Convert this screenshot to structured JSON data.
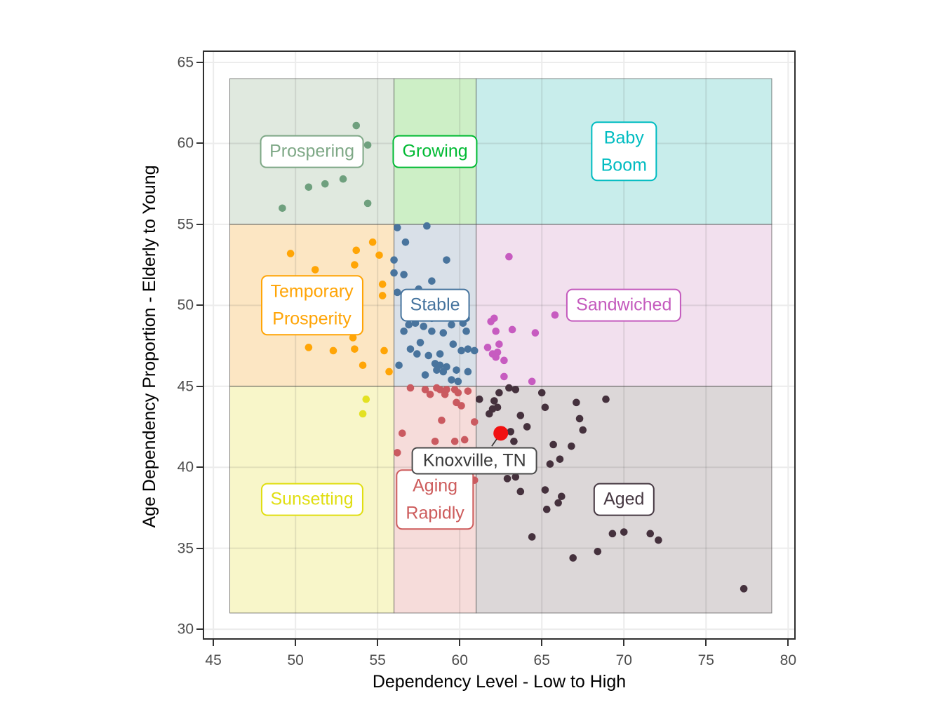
{
  "chart_data": {
    "type": "scatter",
    "title": "",
    "xlabel": "Dependency Level - Low to High",
    "ylabel": "Age Dependency Proportion - Elderly to Young",
    "x_domain": [
      44.44,
      80.37
    ],
    "y_domain": [
      29.44,
      65.65
    ],
    "x_ticks": [
      45,
      50,
      55,
      60,
      65,
      70,
      75,
      80
    ],
    "y_ticks": [
      30,
      35,
      40,
      45,
      50,
      55,
      60,
      65
    ],
    "grid": {
      "on": true,
      "major_color": "#ececec",
      "overlay_color": "rgba(80,80,80,0.13)"
    },
    "panel_border_color": "#2f2f2f",
    "region_border_color": "rgba(70,70,70,0.65)",
    "legend": "none",
    "regions": [
      {
        "id": "prospering",
        "label_lines": [
          "Prospering"
        ],
        "x": [
          46,
          56
        ],
        "y": [
          55,
          64
        ],
        "fill": "#e0e9df",
        "color": "#7ea886",
        "label_at": [
          51.0,
          59.5
        ]
      },
      {
        "id": "growing",
        "label_lines": [
          "Growing"
        ],
        "x": [
          56,
          61
        ],
        "y": [
          55,
          64
        ],
        "fill": "#cdefc6",
        "color": "#00ba33",
        "label_at": [
          58.5,
          59.5
        ]
      },
      {
        "id": "baby-boom",
        "label_lines": [
          "Baby",
          "Boom"
        ],
        "x": [
          61,
          79
        ],
        "y": [
          55,
          64
        ],
        "fill": "#c8edeb",
        "color": "#00bcc1",
        "label_at": [
          70.0,
          59.5
        ]
      },
      {
        "id": "temporary-prosperity",
        "label_lines": [
          "Temporary",
          "Prosperity"
        ],
        "x": [
          46,
          56
        ],
        "y": [
          45,
          55
        ],
        "fill": "#fce6c3",
        "color": "#ffa405",
        "label_at": [
          51.0,
          50.0
        ]
      },
      {
        "id": "stable",
        "label_lines": [
          "Stable"
        ],
        "x": [
          56,
          61
        ],
        "y": [
          45,
          55
        ],
        "fill": "#d9e0e8",
        "color": "#46749e",
        "label_at": [
          58.5,
          50.0
        ]
      },
      {
        "id": "sandwiched",
        "label_lines": [
          "Sandwiched"
        ],
        "x": [
          61,
          79
        ],
        "y": [
          45,
          55
        ],
        "fill": "#f2e0ee",
        "color": "#c45abd",
        "label_at": [
          70.0,
          50.0
        ]
      },
      {
        "id": "sunsetting",
        "label_lines": [
          "Sunsetting"
        ],
        "x": [
          46,
          56
        ],
        "y": [
          31,
          45
        ],
        "fill": "#f8f6c9",
        "color": "#e0de10",
        "label_at": [
          51.0,
          38.0
        ]
      },
      {
        "id": "aging-rapidly",
        "label_lines": [
          "Aging",
          "Rapidly"
        ],
        "x": [
          56,
          61
        ],
        "y": [
          31,
          45
        ],
        "fill": "#f6dcda",
        "color": "#cd5c5c",
        "label_at": [
          58.5,
          38.0
        ]
      },
      {
        "id": "aged",
        "label_lines": [
          "Aged"
        ],
        "x": [
          61,
          79
        ],
        "y": [
          31,
          45
        ],
        "fill": "#dcd7d8",
        "color": "#463842",
        "label_at": [
          70.0,
          38.0
        ]
      }
    ],
    "series": [
      {
        "name": "Prospering",
        "color": "#6fa07e",
        "points": [
          [
            53.7,
            61.1
          ],
          [
            54.4,
            59.9
          ],
          [
            50.8,
            57.3
          ],
          [
            51.8,
            57.5
          ],
          [
            52.9,
            57.8
          ],
          [
            49.2,
            56.0
          ],
          [
            54.4,
            56.3
          ]
        ]
      },
      {
        "name": "Temporary Prosperity",
        "color": "#ffa506",
        "points": [
          [
            49.7,
            53.2
          ],
          [
            51.2,
            52.2
          ],
          [
            53.6,
            52.5
          ],
          [
            53.7,
            53.4
          ],
          [
            54.7,
            53.9
          ],
          [
            55.1,
            53.1
          ],
          [
            55.3,
            51.3
          ],
          [
            55.3,
            50.6
          ],
          [
            53.5,
            48.0
          ],
          [
            50.8,
            47.4
          ],
          [
            52.3,
            47.2
          ],
          [
            53.6,
            47.3
          ],
          [
            55.4,
            47.2
          ],
          [
            54.1,
            46.3
          ],
          [
            55.7,
            45.9
          ]
        ]
      },
      {
        "name": "Stable",
        "color": "#49749d",
        "points": [
          [
            56.2,
            54.8
          ],
          [
            58.0,
            54.9
          ],
          [
            56.7,
            53.9
          ],
          [
            59.2,
            52.8
          ],
          [
            56.0,
            52.8
          ],
          [
            56.0,
            52.0
          ],
          [
            56.6,
            51.9
          ],
          [
            58.3,
            51.5
          ],
          [
            57.5,
            51.0
          ],
          [
            56.2,
            50.8
          ],
          [
            58.3,
            49.2
          ],
          [
            56.9,
            48.8
          ],
          [
            57.3,
            48.9
          ],
          [
            57.8,
            48.7
          ],
          [
            58.3,
            48.4
          ],
          [
            59.0,
            48.3
          ],
          [
            59.5,
            48.8
          ],
          [
            60.2,
            48.9
          ],
          [
            60.4,
            49.2
          ],
          [
            60.4,
            48.4
          ],
          [
            56.6,
            48.4
          ],
          [
            57.6,
            47.7
          ],
          [
            59.6,
            47.6
          ],
          [
            57.0,
            47.3
          ],
          [
            57.4,
            47.0
          ],
          [
            58.1,
            46.9
          ],
          [
            58.8,
            47.0
          ],
          [
            60.1,
            47.2
          ],
          [
            60.5,
            47.3
          ],
          [
            60.9,
            47.2
          ],
          [
            56.3,
            46.3
          ],
          [
            58.5,
            46.4
          ],
          [
            58.8,
            46.3
          ],
          [
            59.2,
            46.2
          ],
          [
            58.6,
            46.0
          ],
          [
            59.0,
            45.9
          ],
          [
            57.9,
            45.7
          ],
          [
            59.8,
            46.0
          ],
          [
            60.5,
            45.9
          ],
          [
            59.5,
            45.4
          ],
          [
            59.9,
            45.3
          ]
        ]
      },
      {
        "name": "Sandwiched",
        "color": "#c75bc0",
        "points": [
          [
            63.0,
            53.0
          ],
          [
            65.8,
            49.4
          ],
          [
            62.1,
            49.2
          ],
          [
            61.9,
            49.0
          ],
          [
            62.2,
            48.4
          ],
          [
            63.2,
            48.5
          ],
          [
            64.6,
            48.3
          ],
          [
            61.7,
            47.4
          ],
          [
            62.4,
            47.6
          ],
          [
            62.0,
            47.0
          ],
          [
            62.3,
            47.1
          ],
          [
            62.2,
            46.8
          ],
          [
            62.7,
            46.6
          ],
          [
            62.7,
            45.6
          ],
          [
            64.4,
            45.3
          ]
        ]
      },
      {
        "name": "Sunsetting",
        "color": "#e3e122",
        "points": [
          [
            54.3,
            44.2
          ],
          [
            54.1,
            43.3
          ]
        ]
      },
      {
        "name": "Aging Rapidly",
        "color": "#ca5a60",
        "points": [
          [
            57.0,
            44.9
          ],
          [
            57.9,
            44.8
          ],
          [
            58.2,
            44.5
          ],
          [
            58.6,
            44.9
          ],
          [
            58.8,
            44.8
          ],
          [
            59.1,
            44.5
          ],
          [
            59.2,
            44.8
          ],
          [
            59.7,
            44.8
          ],
          [
            59.9,
            44.6
          ],
          [
            60.5,
            44.7
          ],
          [
            59.8,
            44.0
          ],
          [
            60.1,
            43.8
          ],
          [
            58.9,
            42.9
          ],
          [
            60.9,
            42.8
          ],
          [
            56.5,
            42.1
          ],
          [
            58.5,
            41.6
          ],
          [
            59.7,
            41.6
          ],
          [
            60.3,
            41.7
          ],
          [
            56.2,
            40.9
          ],
          [
            60.9,
            39.2
          ]
        ]
      },
      {
        "name": "Aged",
        "color": "#45313d",
        "points": [
          [
            61.2,
            44.2
          ],
          [
            62.1,
            44.1
          ],
          [
            62.4,
            44.6
          ],
          [
            63.0,
            44.9
          ],
          [
            63.4,
            44.8
          ],
          [
            62.0,
            43.6
          ],
          [
            62.3,
            43.7
          ],
          [
            61.8,
            43.3
          ],
          [
            63.1,
            42.2
          ],
          [
            63.7,
            43.2
          ],
          [
            64.1,
            42.5
          ],
          [
            65.0,
            44.6
          ],
          [
            65.2,
            43.7
          ],
          [
            67.1,
            44.0
          ],
          [
            67.3,
            43.0
          ],
          [
            67.5,
            42.3
          ],
          [
            68.9,
            44.2
          ],
          [
            63.3,
            41.6
          ],
          [
            65.7,
            41.4
          ],
          [
            66.8,
            41.3
          ],
          [
            65.5,
            40.2
          ],
          [
            66.1,
            40.5
          ],
          [
            62.9,
            39.3
          ],
          [
            63.4,
            39.4
          ],
          [
            63.7,
            38.5
          ],
          [
            65.2,
            38.6
          ],
          [
            66.2,
            38.2
          ],
          [
            66.0,
            37.8
          ],
          [
            65.3,
            37.4
          ],
          [
            64.4,
            35.7
          ],
          [
            69.3,
            35.9
          ],
          [
            70.0,
            36.0
          ],
          [
            71.6,
            35.9
          ],
          [
            72.1,
            35.5
          ],
          [
            68.4,
            34.8
          ],
          [
            66.9,
            34.4
          ],
          [
            77.3,
            32.5
          ]
        ]
      }
    ],
    "highlight": {
      "label": "Knoxville, TN",
      "x": 62.5,
      "y": 42.1,
      "color": "#f11111",
      "point_radius": 10.5,
      "label_at": [
        60.9,
        40.4
      ],
      "leader_end": [
        61.95,
        41.3
      ],
      "leader_color": "#2b2b2b"
    },
    "point_radius": 5.3
  }
}
